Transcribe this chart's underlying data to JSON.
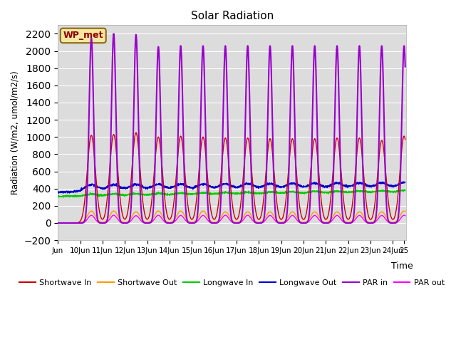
{
  "title": "Solar Radiation",
  "ylabel": "Radiation (W/m2, umol/m2/s)",
  "xlabel": "Time",
  "ylim": [
    -200,
    2300
  ],
  "bg_color": "#dcdcdc",
  "annotation_text": "WP_met",
  "annotation_bg": "#f5e6a0",
  "annotation_border": "#8B6914",
  "x_tick_labels": [
    "Jun",
    "10Jun",
    "11Jun",
    "12Jun",
    "13Jun",
    "14Jun",
    "15Jun",
    "16Jun",
    "17Jun",
    "18Jun",
    "19Jun",
    "20Jun",
    "21Jun",
    "22Jun",
    "23Jun",
    "24Jun",
    "25"
  ],
  "legend_entries": [
    {
      "label": "Shortwave In",
      "color": "#cc0000"
    },
    {
      "label": "Shortwave Out",
      "color": "#ff9900"
    },
    {
      "label": "Longwave In",
      "color": "#00cc00"
    },
    {
      "label": "Longwave Out",
      "color": "#0000cc"
    },
    {
      "label": "PAR in",
      "color": "#9900cc"
    },
    {
      "label": "PAR out",
      "color": "#ff00ff"
    }
  ],
  "n_days": 15,
  "figsize": [
    6.4,
    4.8
  ],
  "dpi": 100
}
